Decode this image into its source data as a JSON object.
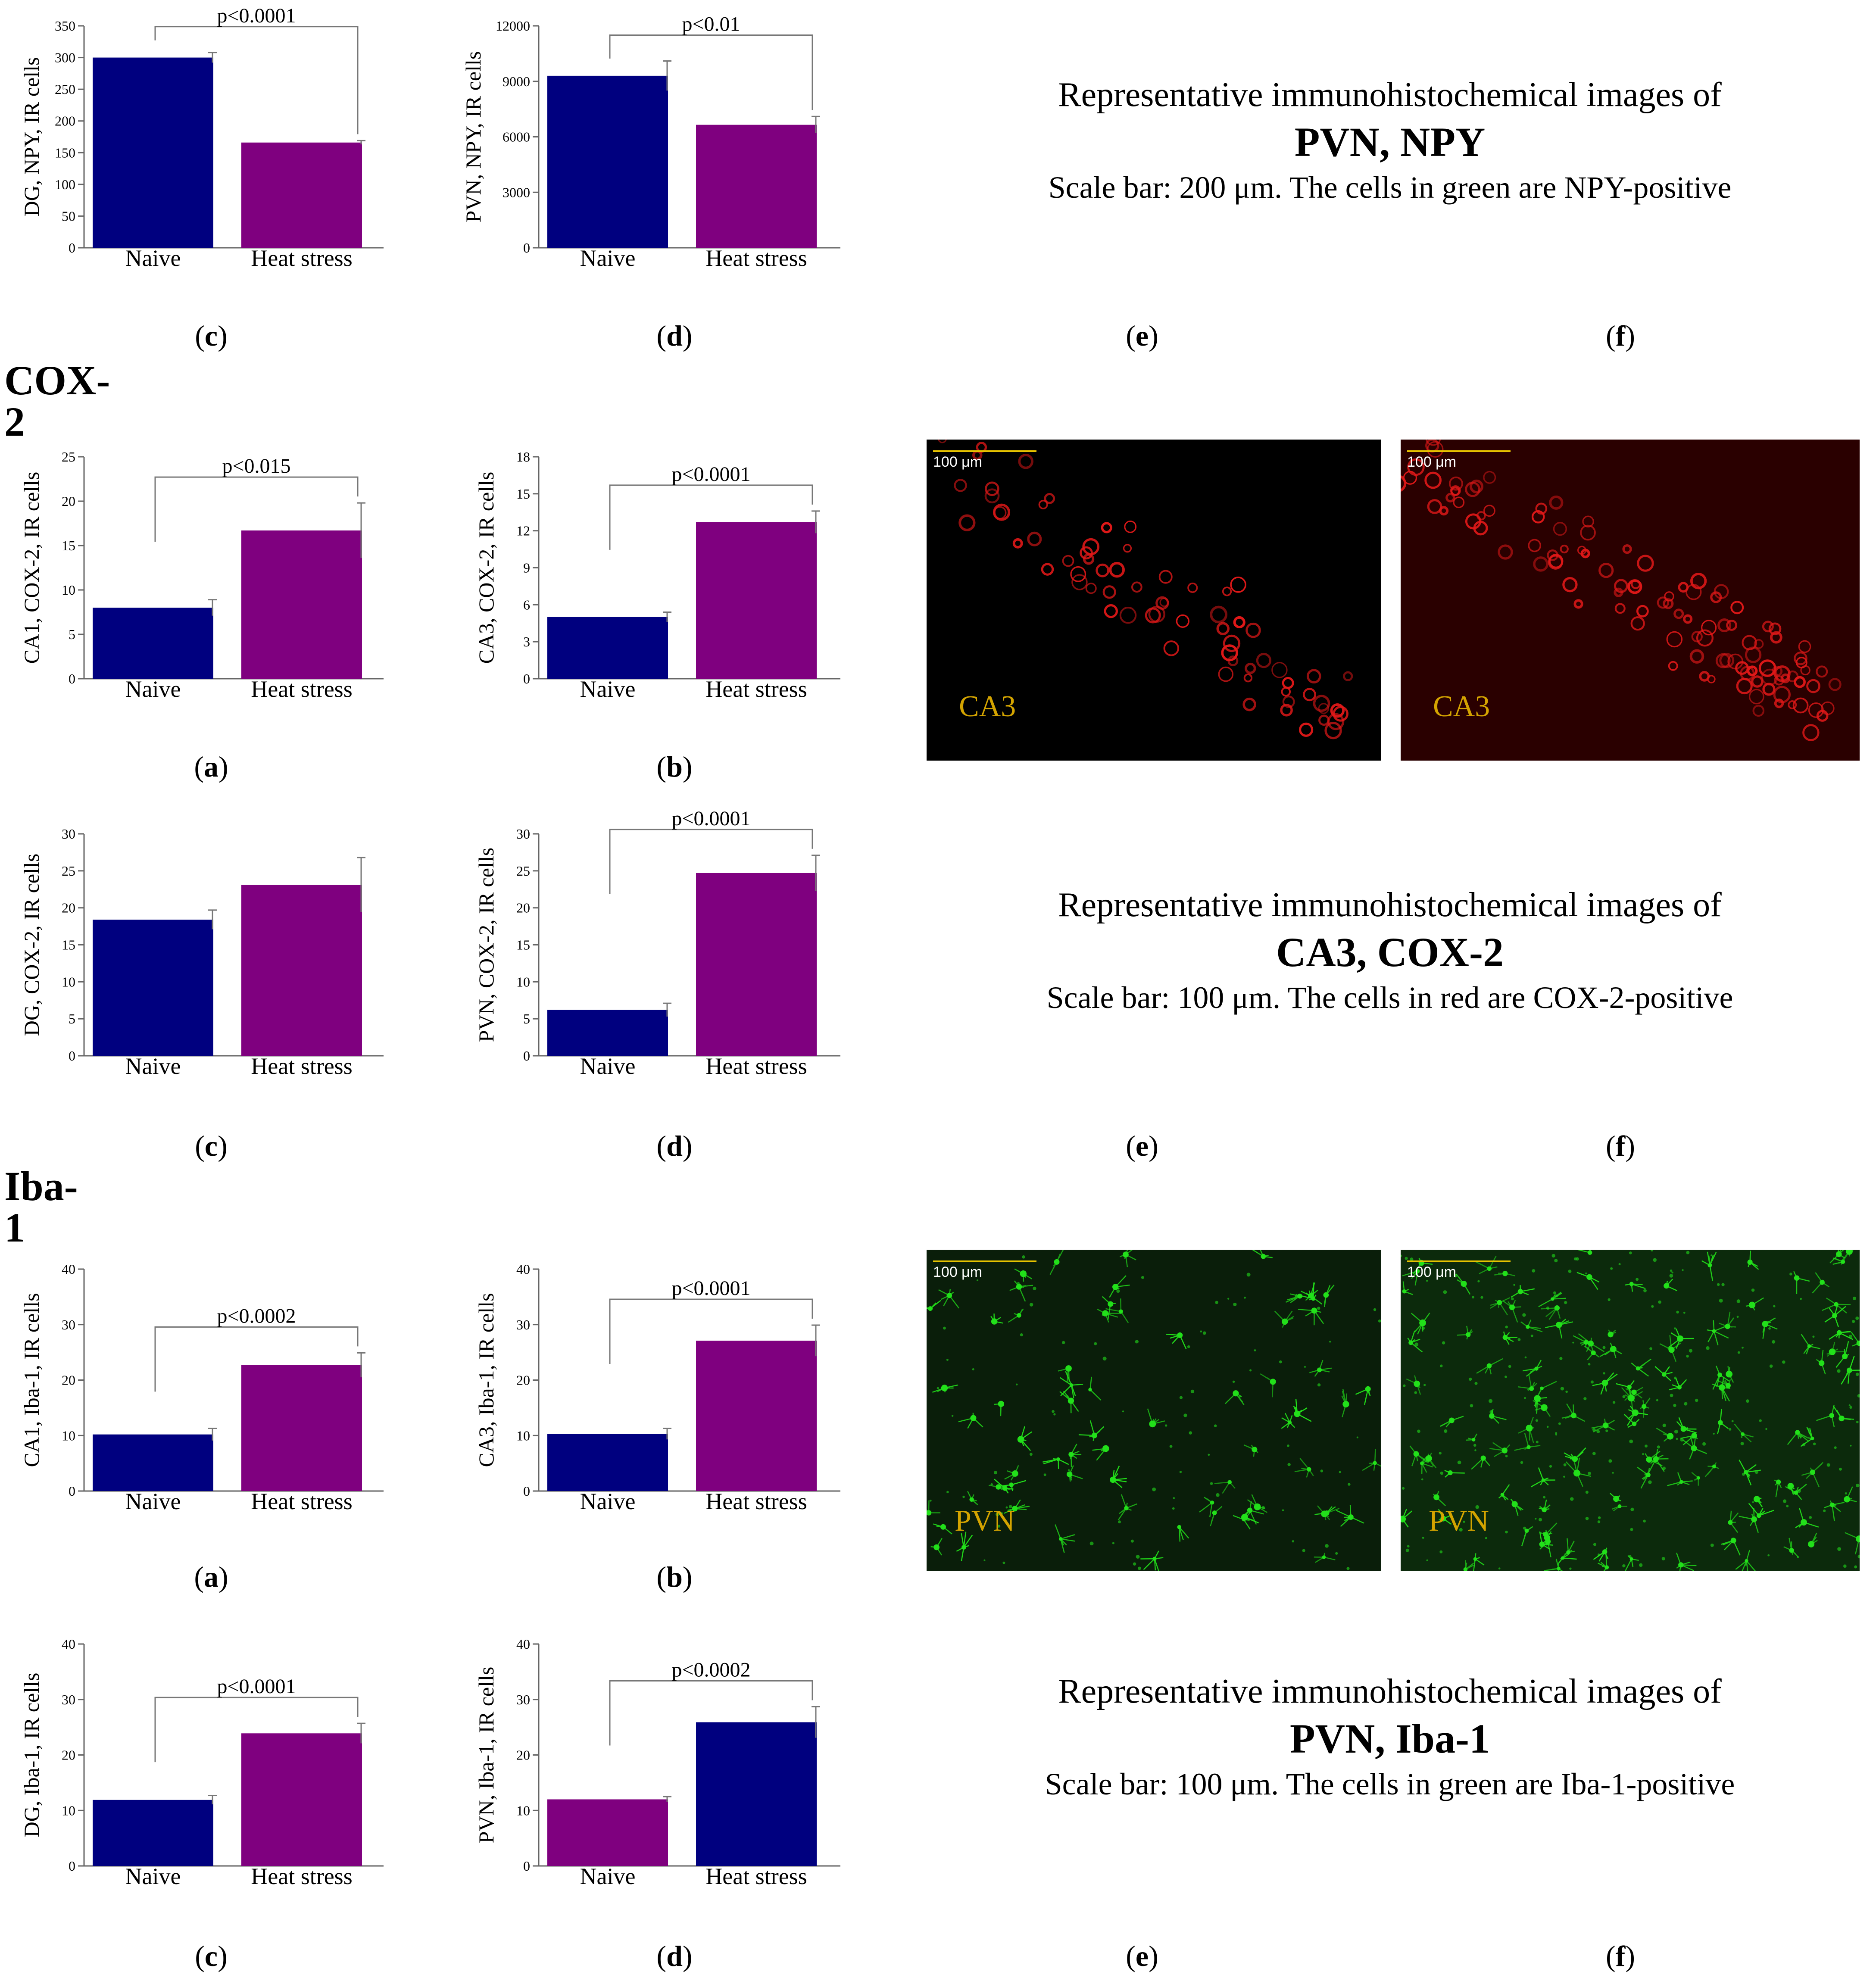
{
  "sections": {
    "cox2": "COX-2",
    "iba1": "Iba-1"
  },
  "subfig": {
    "a": "a",
    "b": "b",
    "c": "c",
    "d": "d",
    "e": "e",
    "f": "f"
  },
  "captions": {
    "npy": {
      "l1": "Representative immunohistochemical images of",
      "l2": "PVN, NPY",
      "l3": "Scale bar: 200 μm. The cells in green are NPY-positive"
    },
    "cox2": {
      "l1": "Representative immunohistochemical images of",
      "l2": "CA3, COX-2",
      "l3": "Scale bar: 100 μm. The cells in red are COX-2-positive"
    },
    "iba1": {
      "l1": "Representative immunohistochemical images of",
      "l2": "PVN, Iba-1",
      "l3": "Scale bar: 100 μm. The cells in green are Iba-1-positive"
    }
  },
  "micrographs": {
    "scale_label": "100 μm",
    "cox2_region": "CA3",
    "iba1_region": "PVN",
    "cox2_color": "#e01818",
    "iba1_color": "#22e01a"
  },
  "colors": {
    "navy": "#00007f",
    "purple": "#7f007f"
  },
  "chart_data": [
    {
      "id": "npy_dg",
      "type": "bar",
      "ylabel": "DG, NPY, IR cells",
      "categories": [
        "Naive",
        "Heat stress"
      ],
      "values": [
        300,
        166
      ],
      "errors": [
        8,
        3
      ],
      "ylim": [
        0,
        350
      ],
      "ticks": [
        0,
        50,
        100,
        150,
        200,
        250,
        300,
        350
      ],
      "bar_colors": [
        "#00007f",
        "#7f007f"
      ],
      "pvalue": "p<0.0001"
    },
    {
      "id": "npy_pvn",
      "type": "bar",
      "ylabel": "PVN, NPY, IR cells",
      "categories": [
        "Naive",
        "Heat stress"
      ],
      "values": [
        9300,
        6650
      ],
      "errors": [
        800,
        450
      ],
      "ylim": [
        0,
        12000
      ],
      "ticks": [
        0,
        3000,
        6000,
        9000,
        12000
      ],
      "bar_colors": [
        "#00007f",
        "#7f007f"
      ],
      "pvalue": "p<0.01"
    },
    {
      "id": "cox2_ca1",
      "type": "bar",
      "ylabel": "CA1, COX-2, IR cells",
      "categories": [
        "Naive",
        "Heat stress"
      ],
      "values": [
        8,
        16.7
      ],
      "errors": [
        0.9,
        3.1
      ],
      "ylim": [
        0,
        25
      ],
      "ticks": [
        0,
        5,
        10,
        15,
        20,
        25
      ],
      "bar_colors": [
        "#00007f",
        "#7f007f"
      ],
      "pvalue": "p<0.015"
    },
    {
      "id": "cox2_ca3",
      "type": "bar",
      "ylabel": "CA3, COX-2, IR cells",
      "categories": [
        "Naive",
        "Heat stress"
      ],
      "values": [
        5,
        12.7
      ],
      "errors": [
        0.4,
        0.9
      ],
      "ylim": [
        0,
        18
      ],
      "ticks": [
        0,
        3,
        6,
        9,
        12,
        15,
        18
      ],
      "bar_colors": [
        "#00007f",
        "#7f007f"
      ],
      "pvalue": "p<0.0001"
    },
    {
      "id": "cox2_dg",
      "type": "bar",
      "ylabel": "DG, COX-2, IR cells",
      "categories": [
        "Naive",
        "Heat stress"
      ],
      "values": [
        18.4,
        23.1
      ],
      "errors": [
        1.3,
        3.7
      ],
      "ylim": [
        0,
        30
      ],
      "ticks": [
        0,
        5,
        10,
        15,
        20,
        25,
        30
      ],
      "bar_colors": [
        "#00007f",
        "#7f007f"
      ],
      "pvalue": ""
    },
    {
      "id": "cox2_pvn",
      "type": "bar",
      "ylabel": "PVN, COX-2, IR cells",
      "categories": [
        "Naive",
        "Heat stress"
      ],
      "values": [
        6.2,
        24.7
      ],
      "errors": [
        0.9,
        2.4
      ],
      "ylim": [
        0,
        30
      ],
      "ticks": [
        0,
        5,
        10,
        15,
        20,
        25,
        30
      ],
      "bar_colors": [
        "#00007f",
        "#7f007f"
      ],
      "pvalue": "p<0.0001"
    },
    {
      "id": "iba1_ca1",
      "type": "bar",
      "ylabel": "CA1, Iba-1, IR cells",
      "categories": [
        "Naive",
        "Heat stress"
      ],
      "values": [
        10.2,
        22.7
      ],
      "errors": [
        1.1,
        2.2
      ],
      "ylim": [
        0,
        40
      ],
      "ticks": [
        0,
        10,
        20,
        30,
        40
      ],
      "bar_colors": [
        "#00007f",
        "#7f007f"
      ],
      "pvalue": "p<0.0002"
    },
    {
      "id": "iba1_ca3",
      "type": "bar",
      "ylabel": "CA3, Iba-1, IR cells",
      "categories": [
        "Naive",
        "Heat stress"
      ],
      "values": [
        10.3,
        27.1
      ],
      "errors": [
        1,
        2.8
      ],
      "ylim": [
        0,
        40
      ],
      "ticks": [
        0,
        10,
        20,
        30,
        40
      ],
      "bar_colors": [
        "#00007f",
        "#7f007f"
      ],
      "pvalue": "p<0.0001"
    },
    {
      "id": "iba1_dg",
      "type": "bar",
      "ylabel": "DG, Iba-1, IR cells",
      "categories": [
        "Naive",
        "Heat stress"
      ],
      "values": [
        11.9,
        23.9
      ],
      "errors": [
        0.8,
        1.8
      ],
      "ylim": [
        0,
        40
      ],
      "ticks": [
        0,
        10,
        20,
        30,
        40
      ],
      "bar_colors": [
        "#00007f",
        "#7f007f"
      ],
      "pvalue": "p<0.0001"
    },
    {
      "id": "iba1_pvn",
      "type": "bar",
      "ylabel": "PVN, Iba-1, IR cells",
      "categories": [
        "Naive",
        "Heat stress"
      ],
      "values": [
        12,
        25.9
      ],
      "errors": [
        0.5,
        2.8
      ],
      "ylim": [
        0,
        40
      ],
      "ticks": [
        0,
        10,
        20,
        30,
        40
      ],
      "bar_colors": [
        "#7f007f",
        "#00007f"
      ],
      "pvalue": "p<0.0002"
    }
  ]
}
